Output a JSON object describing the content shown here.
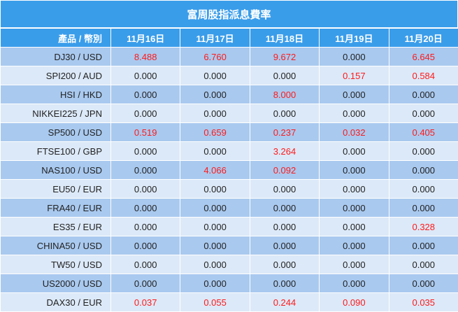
{
  "title": "富周股指派息費率",
  "header": {
    "first": "產品 / 幣別",
    "dates": [
      "11月16日",
      "11月17日",
      "11月18日",
      "11月19日",
      "11月20日"
    ]
  },
  "colors": {
    "header_bg": "#3a9dea",
    "row_dark": "#a9c9ef",
    "row_light": "#dce9f8",
    "highlight": "#ff1a1a"
  },
  "rows": [
    {
      "pair": "DJ30 / USD",
      "values": [
        "8.488",
        "6.760",
        "9.672",
        "0.000",
        "6.645"
      ]
    },
    {
      "pair": "SPI200 / AUD",
      "values": [
        "0.000",
        "0.000",
        "0.000",
        "0.157",
        "0.584"
      ]
    },
    {
      "pair": "HSI / HKD",
      "values": [
        "0.000",
        "0.000",
        "8.000",
        "0.000",
        "0.000"
      ]
    },
    {
      "pair": "NIKKEI225 / JPN",
      "values": [
        "0.000",
        "0.000",
        "0.000",
        "0.000",
        "0.000"
      ]
    },
    {
      "pair": "SP500 / USD",
      "values": [
        "0.519",
        "0.659",
        "0.237",
        "0.032",
        "0.405"
      ]
    },
    {
      "pair": "FTSE100 / GBP",
      "values": [
        "0.000",
        "0.000",
        "3.264",
        "0.000",
        "0.000"
      ]
    },
    {
      "pair": "NAS100 / USD",
      "values": [
        "0.000",
        "4.066",
        "0.092",
        "0.000",
        "0.000"
      ]
    },
    {
      "pair": "EU50 / EUR",
      "values": [
        "0.000",
        "0.000",
        "0.000",
        "0.000",
        "0.000"
      ]
    },
    {
      "pair": "FRA40 / EUR",
      "values": [
        "0.000",
        "0.000",
        "0.000",
        "0.000",
        "0.000"
      ]
    },
    {
      "pair": "ES35 / EUR",
      "values": [
        "0.000",
        "0.000",
        "0.000",
        "0.000",
        "0.328"
      ]
    },
    {
      "pair": "CHINA50 / USD",
      "values": [
        "0.000",
        "0.000",
        "0.000",
        "0.000",
        "0.000"
      ]
    },
    {
      "pair": "TW50 / USD",
      "values": [
        "0.000",
        "0.000",
        "0.000",
        "0.000",
        "0.000"
      ]
    },
    {
      "pair": "US2000 / USD",
      "values": [
        "0.000",
        "0.000",
        "0.000",
        "0.000",
        "0.000"
      ]
    },
    {
      "pair": "DAX30 / EUR",
      "values": [
        "0.037",
        "0.055",
        "0.244",
        "0.090",
        "0.035"
      ]
    }
  ]
}
